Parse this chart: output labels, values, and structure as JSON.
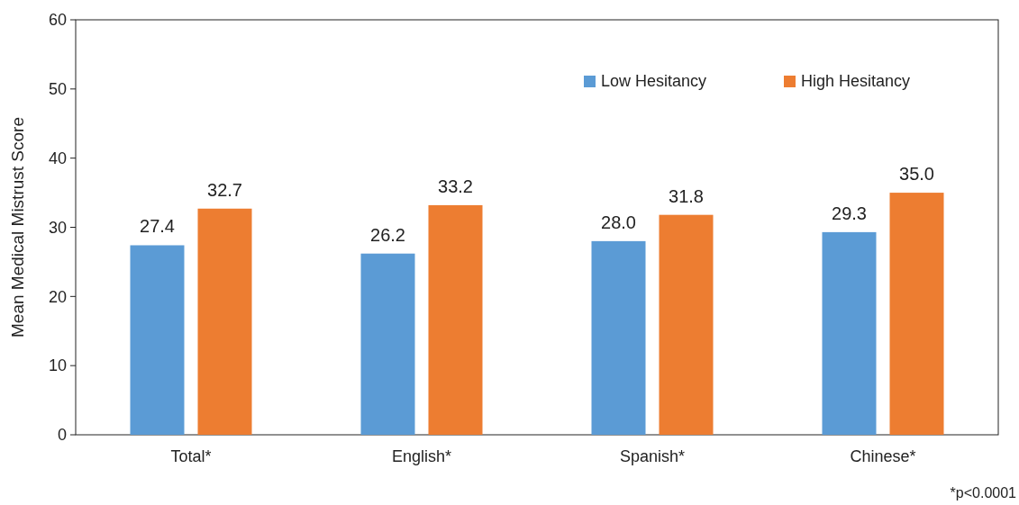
{
  "chart_data": {
    "type": "bar",
    "ylabel": "Mean Medical Mistrust Score",
    "categories": [
      "Total*",
      "English*",
      "Spanish*",
      "Chinese*"
    ],
    "series": [
      {
        "name": "Low Hesitancy",
        "color": "#5b9bd5",
        "values": [
          27.4,
          26.2,
          28.0,
          29.3
        ],
        "value_labels": [
          "27.4",
          "26.2",
          "28.0",
          "29.3"
        ]
      },
      {
        "name": "High Hesitancy",
        "color": "#ed7d31",
        "values": [
          32.7,
          33.2,
          31.8,
          35.0
        ],
        "value_labels": [
          "32.7",
          "33.2",
          "31.8",
          "35.0"
        ]
      }
    ],
    "ylim": [
      0,
      60
    ],
    "yticks": [
      0,
      10,
      20,
      30,
      40,
      50,
      60
    ],
    "grid": false,
    "legend": "top right",
    "annotations": [
      "*p<0.0001"
    ]
  }
}
